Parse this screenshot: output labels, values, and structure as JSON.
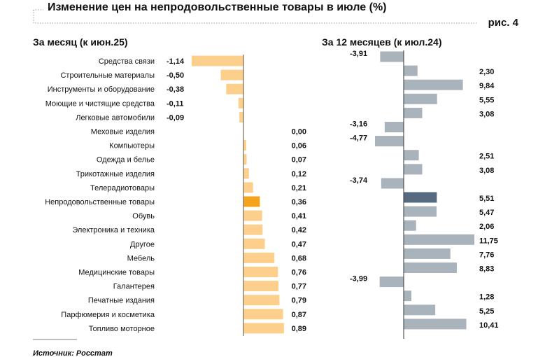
{
  "title": "Изменение цен на непродовольственные товары в июле (%)",
  "fig_label": "рис. 4",
  "source": "Источник: Росстат",
  "colors": {
    "month": "#fcd08c",
    "month_highlight": "#f5a21c",
    "year": "#a9b3bb",
    "year_highlight": "#566a80"
  },
  "chart_data": [
    {
      "type": "bar",
      "orientation": "horizontal",
      "title": "За месяц (к июн.25)",
      "categories": [
        "Средства связи",
        "Строительные материалы",
        "Инструменты и оборудование",
        "Моющие и чистящие средства",
        "Легковые автомобили",
        "Меховые изделия",
        "Компьютеры",
        "Одежда и белье",
        "Трикотажные изделия",
        "Телерадиотовары",
        "Непродовольственные товары",
        "Обувь",
        "Электроника и техника",
        "Другое",
        "Мебель",
        "Медицинские товары",
        "Галантерея",
        "Печатные издания",
        "Парфюмерия и косметика",
        "Топливо моторное"
      ],
      "values": [
        -1.14,
        -0.5,
        -0.38,
        -0.11,
        -0.09,
        0.0,
        0.06,
        0.07,
        0.12,
        0.21,
        0.36,
        0.41,
        0.42,
        0.47,
        0.68,
        0.76,
        0.77,
        0.79,
        0.87,
        0.89
      ],
      "labels": [
        "-1,14",
        "-0,50",
        "-0,38",
        "-0,11",
        "-0,09",
        "0,00",
        "0,06",
        "0,07",
        "0,12",
        "0,21",
        "0,36",
        "0,41",
        "0,42",
        "0,47",
        "0,68",
        "0,76",
        "0,77",
        "0,79",
        "0,87",
        "0,89"
      ],
      "highlight_index": 10
    },
    {
      "type": "bar",
      "orientation": "horizontal",
      "title": "За 12 месяцев (к июл.24)",
      "values": [
        -3.91,
        2.3,
        9.84,
        5.55,
        3.08,
        -3.16,
        -4.77,
        2.51,
        3.08,
        -3.74,
        5.51,
        5.47,
        2.06,
        11.75,
        7.76,
        8.83,
        -3.99,
        1.28,
        5.25,
        10.41
      ],
      "labels": [
        "-3,91",
        "2,30",
        "9,84",
        "5,55",
        "3,08",
        "-3,16",
        "-4,77",
        "2,51",
        "3,08",
        "-3,74",
        "5,51",
        "5,47",
        "2,06",
        "11,75",
        "7,76",
        "8,83",
        "-3,99",
        "1,28",
        "5,25",
        "10,41"
      ],
      "highlight_index": 10
    }
  ]
}
